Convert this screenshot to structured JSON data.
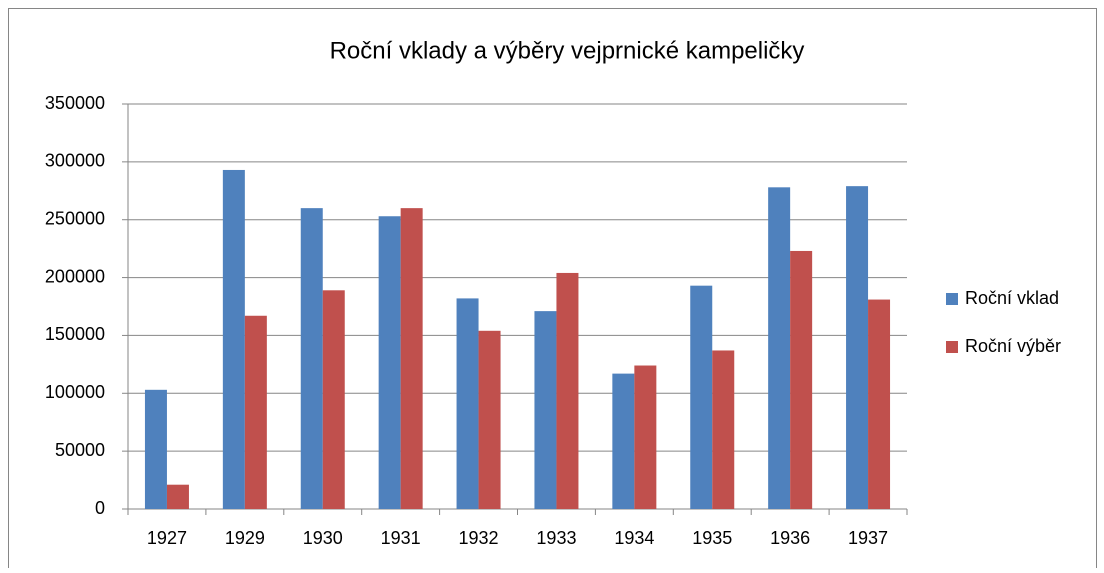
{
  "chart_data": {
    "type": "bar",
    "title": "Roční vklady a výběry vejprnické kampeličky",
    "categories": [
      "1927",
      "1929",
      "1930",
      "1931",
      "1932",
      "1933",
      "1934",
      "1935",
      "1936",
      "1937"
    ],
    "series": [
      {
        "name": "Roční vklad",
        "color": "#4f81bd",
        "values": [
          103000,
          293000,
          260000,
          253000,
          182000,
          171000,
          117000,
          193000,
          278000,
          279000
        ]
      },
      {
        "name": "Roční výběr",
        "color": "#c0504d",
        "values": [
          21000,
          167000,
          189000,
          260000,
          154000,
          204000,
          124000,
          137000,
          223000,
          181000
        ]
      }
    ],
    "ylim": [
      0,
      350000
    ],
    "yticks": [
      0,
      50000,
      100000,
      150000,
      200000,
      250000,
      300000,
      350000
    ],
    "grid": true,
    "legend": "right"
  }
}
